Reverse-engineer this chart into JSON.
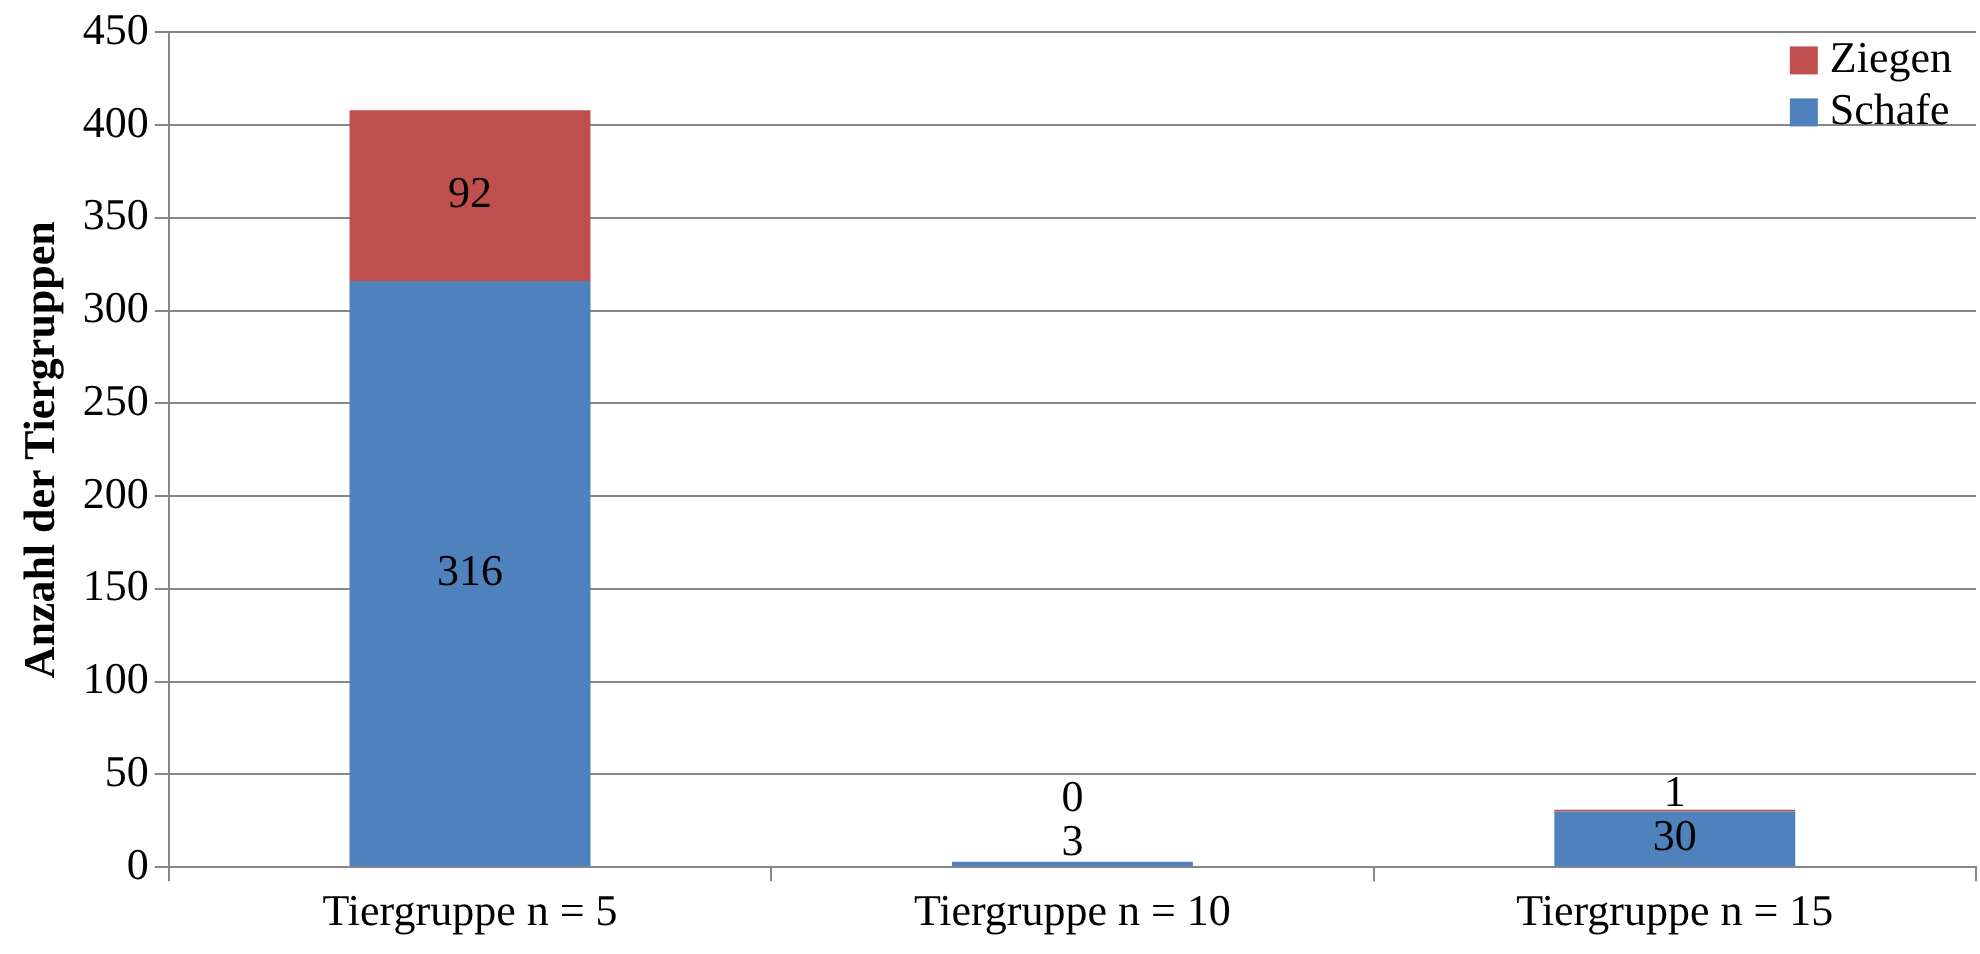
{
  "chart_data": {
    "type": "bar",
    "stacked": true,
    "ylabel": "Anzahl der Tiergruppen",
    "categories": [
      "Tiergruppe n = 5",
      "Tiergruppe n = 10",
      "Tiergruppe n = 15"
    ],
    "series": [
      {
        "name": "Schafe",
        "color": "#4f81bd",
        "values": [
          316,
          3,
          30
        ]
      },
      {
        "name": "Ziegen",
        "color": "#c0504d",
        "values": [
          92,
          0,
          1
        ]
      }
    ],
    "ylim": [
      0,
      450
    ],
    "yticks": [
      0,
      50,
      100,
      150,
      200,
      250,
      300,
      350,
      400,
      450
    ],
    "grid": "y",
    "legend": "top right",
    "data_labels": true
  }
}
